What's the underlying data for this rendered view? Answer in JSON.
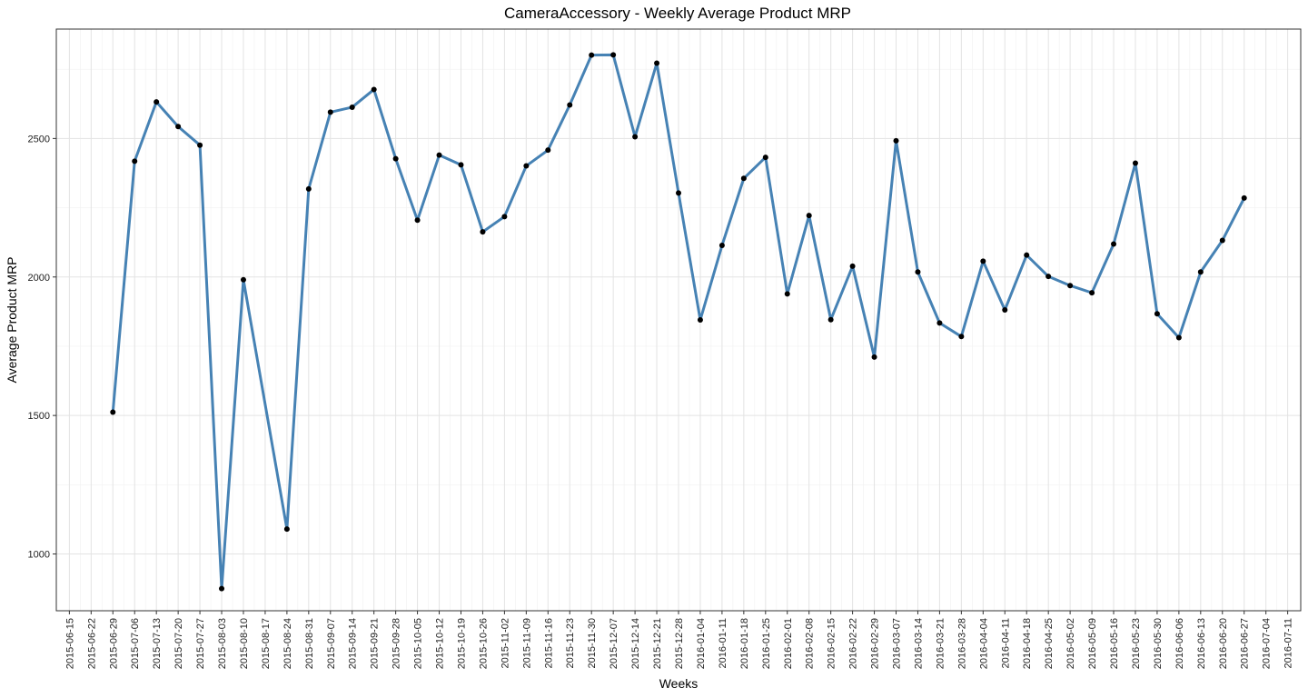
{
  "chart_data": {
    "type": "line",
    "title": "CameraAccessory - Weekly Average Product MRP",
    "xlabel": "Weeks",
    "ylabel": "Average Product MRP",
    "categories": [
      "2015-06-15",
      "2015-06-22",
      "2015-06-29",
      "2015-07-06",
      "2015-07-13",
      "2015-07-20",
      "2015-07-27",
      "2015-08-03",
      "2015-08-10",
      "2015-08-17",
      "2015-08-24",
      "2015-08-31",
      "2015-09-07",
      "2015-09-14",
      "2015-09-21",
      "2015-09-28",
      "2015-10-05",
      "2015-10-12",
      "2015-10-19",
      "2015-10-26",
      "2015-11-02",
      "2015-11-09",
      "2015-11-16",
      "2015-11-23",
      "2015-11-30",
      "2015-12-07",
      "2015-12-14",
      "2015-12-21",
      "2015-12-28",
      "2016-01-04",
      "2016-01-11",
      "2016-01-18",
      "2016-01-25",
      "2016-02-01",
      "2016-02-08",
      "2016-02-15",
      "2016-02-22",
      "2016-02-29",
      "2016-03-07",
      "2016-03-14",
      "2016-03-21",
      "2016-03-28",
      "2016-04-04",
      "2016-04-11",
      "2016-04-18",
      "2016-04-25",
      "2016-05-02",
      "2016-05-09",
      "2016-05-16",
      "2016-05-23",
      "2016-05-30",
      "2016-06-06",
      "2016-06-13",
      "2016-06-20",
      "2016-06-27",
      "2016-07-04",
      "2016-07-11"
    ],
    "series": [
      {
        "points": [
          {
            "x": "2015-06-29",
            "y": 1512
          },
          {
            "x": "2015-07-06",
            "y": 2418
          },
          {
            "x": "2015-07-13",
            "y": 2632
          },
          {
            "x": "2015-07-20",
            "y": 2543
          },
          {
            "x": "2015-07-27",
            "y": 2476
          },
          {
            "x": "2015-08-03",
            "y": 875
          },
          {
            "x": "2015-08-10",
            "y": 1990
          },
          {
            "x": "2015-08-24",
            "y": 1090
          },
          {
            "x": "2015-08-31",
            "y": 2318
          },
          {
            "x": "2015-09-07",
            "y": 2595
          },
          {
            "x": "2015-09-14",
            "y": 2613
          },
          {
            "x": "2015-09-21",
            "y": 2677
          },
          {
            "x": "2015-09-28",
            "y": 2427
          },
          {
            "x": "2015-10-05",
            "y": 2205
          },
          {
            "x": "2015-10-12",
            "y": 2440
          },
          {
            "x": "2015-10-19",
            "y": 2405
          },
          {
            "x": "2015-10-26",
            "y": 2163
          },
          {
            "x": "2015-11-02",
            "y": 2218
          },
          {
            "x": "2015-11-09",
            "y": 2401
          },
          {
            "x": "2015-11-16",
            "y": 2458
          },
          {
            "x": "2015-11-23",
            "y": 2621
          },
          {
            "x": "2015-11-30",
            "y": 2801
          },
          {
            "x": "2015-12-07",
            "y": 2802
          },
          {
            "x": "2015-12-14",
            "y": 2506
          },
          {
            "x": "2015-12-21",
            "y": 2772
          },
          {
            "x": "2015-12-28",
            "y": 2303
          },
          {
            "x": "2016-01-04",
            "y": 1845
          },
          {
            "x": "2016-01-11",
            "y": 2114
          },
          {
            "x": "2016-01-18",
            "y": 2356
          },
          {
            "x": "2016-01-25",
            "y": 2432
          },
          {
            "x": "2016-02-01",
            "y": 1939
          },
          {
            "x": "2016-02-08",
            "y": 2222
          },
          {
            "x": "2016-02-15",
            "y": 1846
          },
          {
            "x": "2016-02-22",
            "y": 2039
          },
          {
            "x": "2016-02-29",
            "y": 1711
          },
          {
            "x": "2016-03-07",
            "y": 2492
          },
          {
            "x": "2016-03-14",
            "y": 2018
          },
          {
            "x": "2016-03-21",
            "y": 1834
          },
          {
            "x": "2016-03-28",
            "y": 1785
          },
          {
            "x": "2016-04-04",
            "y": 2057
          },
          {
            "x": "2016-04-11",
            "y": 1881
          },
          {
            "x": "2016-04-18",
            "y": 2079
          },
          {
            "x": "2016-04-25",
            "y": 2002
          },
          {
            "x": "2016-05-02",
            "y": 1969
          },
          {
            "x": "2016-05-09",
            "y": 1943
          },
          {
            "x": "2016-05-16",
            "y": 2119
          },
          {
            "x": "2016-05-23",
            "y": 2411
          },
          {
            "x": "2016-05-30",
            "y": 1867
          },
          {
            "x": "2016-06-06",
            "y": 1781
          },
          {
            "x": "2016-06-13",
            "y": 2018
          },
          {
            "x": "2016-06-20",
            "y": 2132
          },
          {
            "x": "2016-06-27",
            "y": 2285
          }
        ]
      }
    ],
    "y_ticks": [
      "1000",
      "1500",
      "2000",
      "2500"
    ],
    "ylim": [
      795,
      2895
    ],
    "grid": true,
    "legend": "none",
    "colors": {
      "line": "#4682b4",
      "point": "#000000",
      "grid": "#e3e3e3",
      "border": "#333333"
    }
  }
}
